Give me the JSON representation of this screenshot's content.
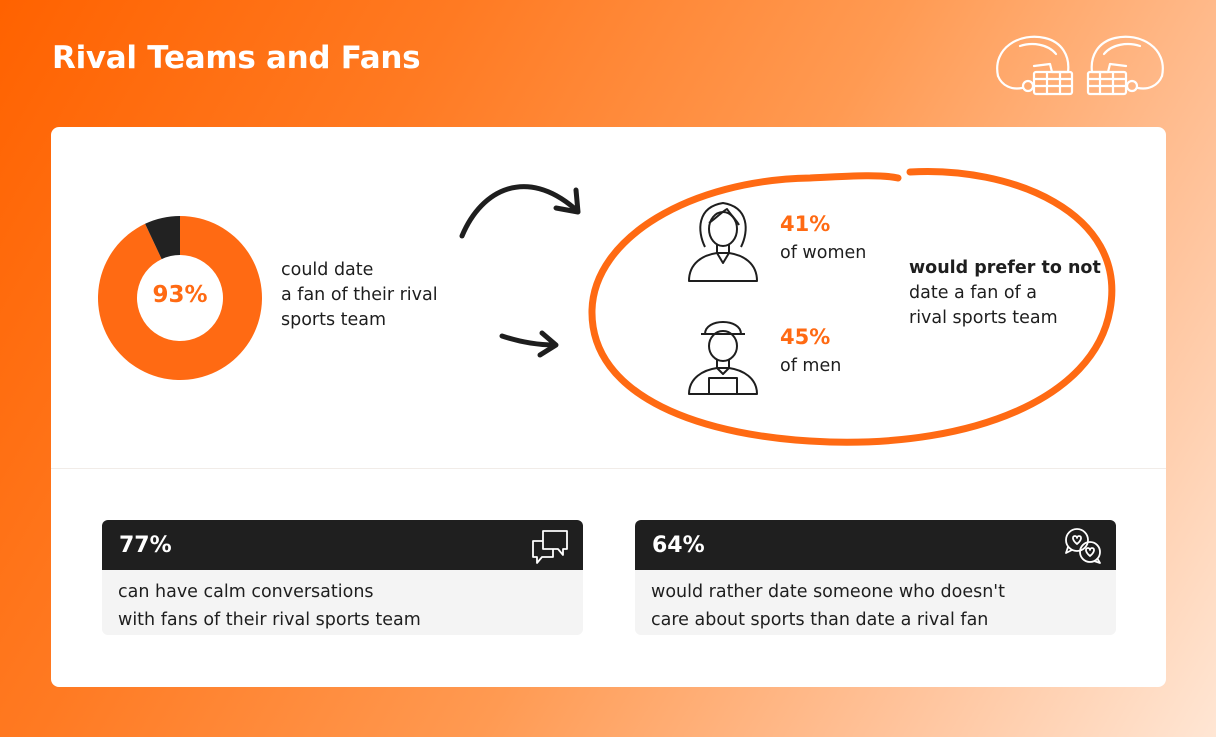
{
  "title": "Rival Teams and Fans",
  "colors": {
    "accent": "#ff6a13",
    "dark": "#1f1f1f",
    "card": "#ffffff",
    "box": "#f4f4f4"
  },
  "icons": [
    "football-helmet-icon",
    "curved-arrow-icon",
    "woman-icon",
    "man-icon",
    "speech-bubbles-icon",
    "heart-chat-icon"
  ],
  "chart_data": {
    "type": "pie",
    "variant": "donut",
    "center_label": "93%",
    "values": [
      93,
      7
    ],
    "colors": [
      "#ff6a13",
      "#222222"
    ]
  },
  "donut_caption": [
    "could date",
    "a fan of their rival",
    "sports team"
  ],
  "women": {
    "pct": "41%",
    "label": "of women"
  },
  "men": {
    "pct": "45%",
    "label": "of men"
  },
  "prefer": {
    "bold": "would prefer to not",
    "lines": [
      "date a fan of a",
      "rival sports team"
    ]
  },
  "stat1": {
    "value": "77%",
    "lines": [
      "can have calm conversations",
      "with fans of their rival sports team"
    ]
  },
  "stat2": {
    "value": "64%",
    "lines": [
      "would rather date someone who doesn't",
      "care about sports than date a rival fan"
    ]
  }
}
